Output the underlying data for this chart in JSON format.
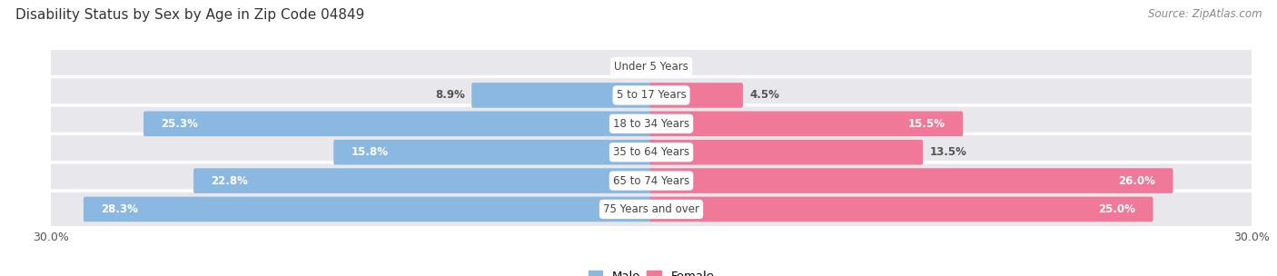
{
  "title": "Disability Status by Sex by Age in Zip Code 04849",
  "source": "Source: ZipAtlas.com",
  "categories": [
    "Under 5 Years",
    "5 to 17 Years",
    "18 to 34 Years",
    "35 to 64 Years",
    "65 to 74 Years",
    "75 Years and over"
  ],
  "male_values": [
    0.0,
    8.9,
    25.3,
    15.8,
    22.8,
    28.3
  ],
  "female_values": [
    0.0,
    4.5,
    15.5,
    13.5,
    26.0,
    25.0
  ],
  "male_color": "#8bb8e0",
  "female_color": "#f07898",
  "row_bg_color": "#e8e8ec",
  "xlim": 30.0,
  "bar_height": 0.72,
  "white_threshold_male": 15.0,
  "white_threshold_female": 15.0
}
